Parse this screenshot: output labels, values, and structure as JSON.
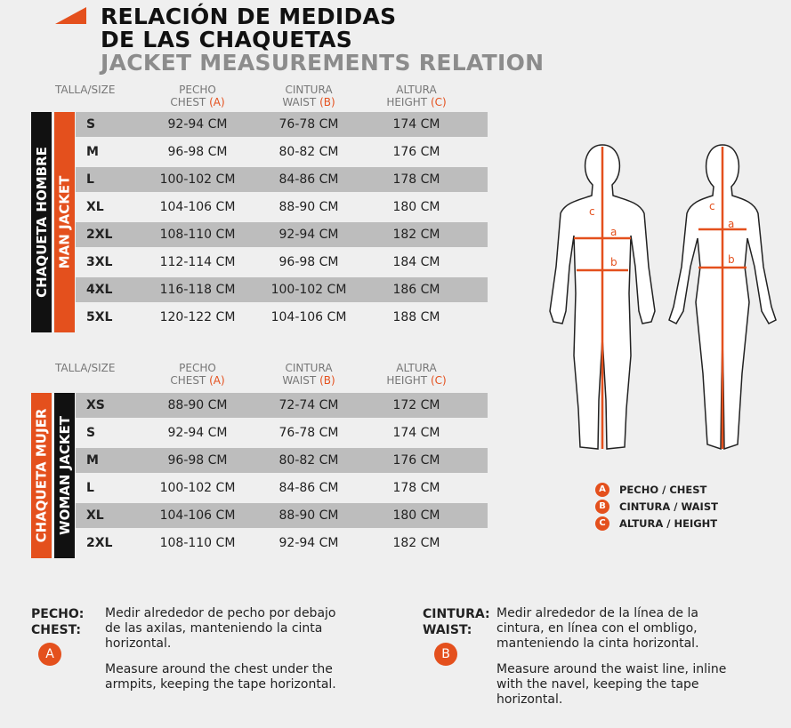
{
  "header": {
    "title_es_1": "RELACIÓN DE MEDIDAS",
    "title_es_2": "DE LAS CHAQUETAS",
    "title_en": "JACKET MEASUREMENTS RELATION"
  },
  "tables": [
    {
      "label_es": "CHAQUETA HOMBRE",
      "label_en": "MAN JACKET",
      "size_header": "TALLA/SIZE",
      "columns": [
        {
          "es": "PECHO",
          "en": "CHEST",
          "letter": "(A)"
        },
        {
          "es": "CINTURA",
          "en": "WAIST",
          "letter": "(B)"
        },
        {
          "es": "ALTURA",
          "en": "HEIGHT",
          "letter": "(C)"
        }
      ],
      "rows": [
        [
          "S",
          "92-94 CM",
          "76-78 CM",
          "174 CM"
        ],
        [
          "M",
          "96-98 CM",
          "80-82 CM",
          "176 CM"
        ],
        [
          "L",
          "100-102 CM",
          "84-86 CM",
          "178 CM"
        ],
        [
          "XL",
          "104-106 CM",
          "88-90 CM",
          "180 CM"
        ],
        [
          "2XL",
          "108-110 CM",
          "92-94 CM",
          "182 CM"
        ],
        [
          "3XL",
          "112-114 CM",
          "96-98 CM",
          "184 CM"
        ],
        [
          "4XL",
          "116-118 CM",
          "100-102 CM",
          "186 CM"
        ],
        [
          "5XL",
          "120-122 CM",
          "104-106 CM",
          "188 CM"
        ]
      ]
    },
    {
      "label_es": "CHAQUETA MUJER",
      "label_en": "WOMAN JACKET",
      "size_header": "TALLA/SIZE",
      "columns": [
        {
          "es": "PECHO",
          "en": "CHEST",
          "letter": "(A)"
        },
        {
          "es": "CINTURA",
          "en": "WAIST",
          "letter": "(B)"
        },
        {
          "es": "ALTURA",
          "en": "HEIGHT",
          "letter": "(C)"
        }
      ],
      "rows": [
        [
          "XS",
          "88-90 CM",
          "72-74 CM",
          "172 CM"
        ],
        [
          "S",
          "92-94 CM",
          "76-78 CM",
          "174 CM"
        ],
        [
          "M",
          "96-98 CM",
          "80-82 CM",
          "176 CM"
        ],
        [
          "L",
          "100-102 CM",
          "84-86 CM",
          "178 CM"
        ],
        [
          "XL",
          "104-106 CM",
          "88-90 CM",
          "180 CM"
        ],
        [
          "2XL",
          "108-110 CM",
          "92-94 CM",
          "182 CM"
        ]
      ]
    }
  ],
  "figure_labels": {
    "height": "c",
    "chest": "a",
    "waist": "b"
  },
  "legend": [
    {
      "badge": "A",
      "text": "PECHO / CHEST"
    },
    {
      "badge": "B",
      "text": "CINTURA / WAIST"
    },
    {
      "badge": "C",
      "text": "ALTURA / HEIGHT"
    }
  ],
  "notes": [
    {
      "term_es": "PECHO:",
      "term_en": "CHEST:",
      "badge": "A",
      "text_es": "Medir alrededor de pecho por debajo de las axilas, manteniendo la cinta horizontal.",
      "text_en": "Measure around the chest under the armpits, keeping the tape horizontal."
    },
    {
      "term_es": "CINTURA:",
      "term_en": "WAIST:",
      "badge": "B",
      "text_es": "Medir alrededor de la línea de la cintura, en línea con el ombligo, manteniendo la cinta horizontal.",
      "text_en": "Measure around the waist line, inline with the navel, keeping the tape horizontal."
    }
  ]
}
